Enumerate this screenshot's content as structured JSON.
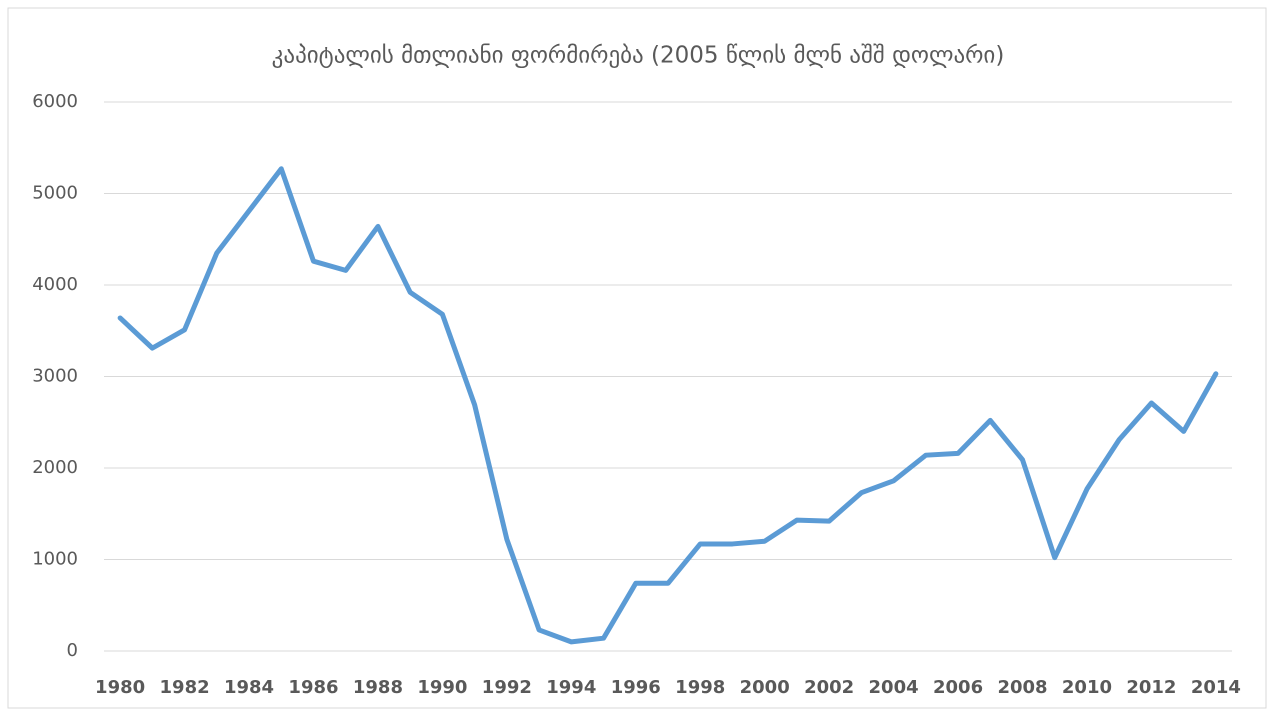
{
  "chart_data": {
    "type": "line",
    "title": "კაპიტალის მთლიანი ფორმირება (2005 წლის მლნ აშშ დოლარი)",
    "categories": [
      "1980",
      null,
      "1982",
      null,
      "1984",
      null,
      "1986",
      null,
      "1988",
      null,
      "1990",
      null,
      "1992",
      null,
      "1994",
      null,
      "1996",
      null,
      "1998",
      null,
      "2000",
      null,
      "2002",
      null,
      "2004",
      null,
      "2006",
      null,
      "2008",
      null,
      "2010",
      null,
      "2012",
      null,
      "2014"
    ],
    "series": [
      {
        "name": null,
        "color": "#5b9bd5",
        "values": [
          3640,
          3310,
          3510,
          4350,
          4810,
          5270,
          4260,
          4160,
          4640,
          3920,
          3680,
          2690,
          1220,
          230,
          100,
          140,
          740,
          740,
          1170,
          1170,
          1200,
          1430,
          1420,
          1730,
          1860,
          2140,
          2160,
          2520,
          2090,
          1020,
          1770,
          2310,
          2710,
          2400,
          3030
        ]
      }
    ],
    "ylim": [
      0,
      6000
    ],
    "yticks": [
      0,
      1000,
      2000,
      3000,
      4000,
      5000,
      6000
    ],
    "grid": true
  }
}
